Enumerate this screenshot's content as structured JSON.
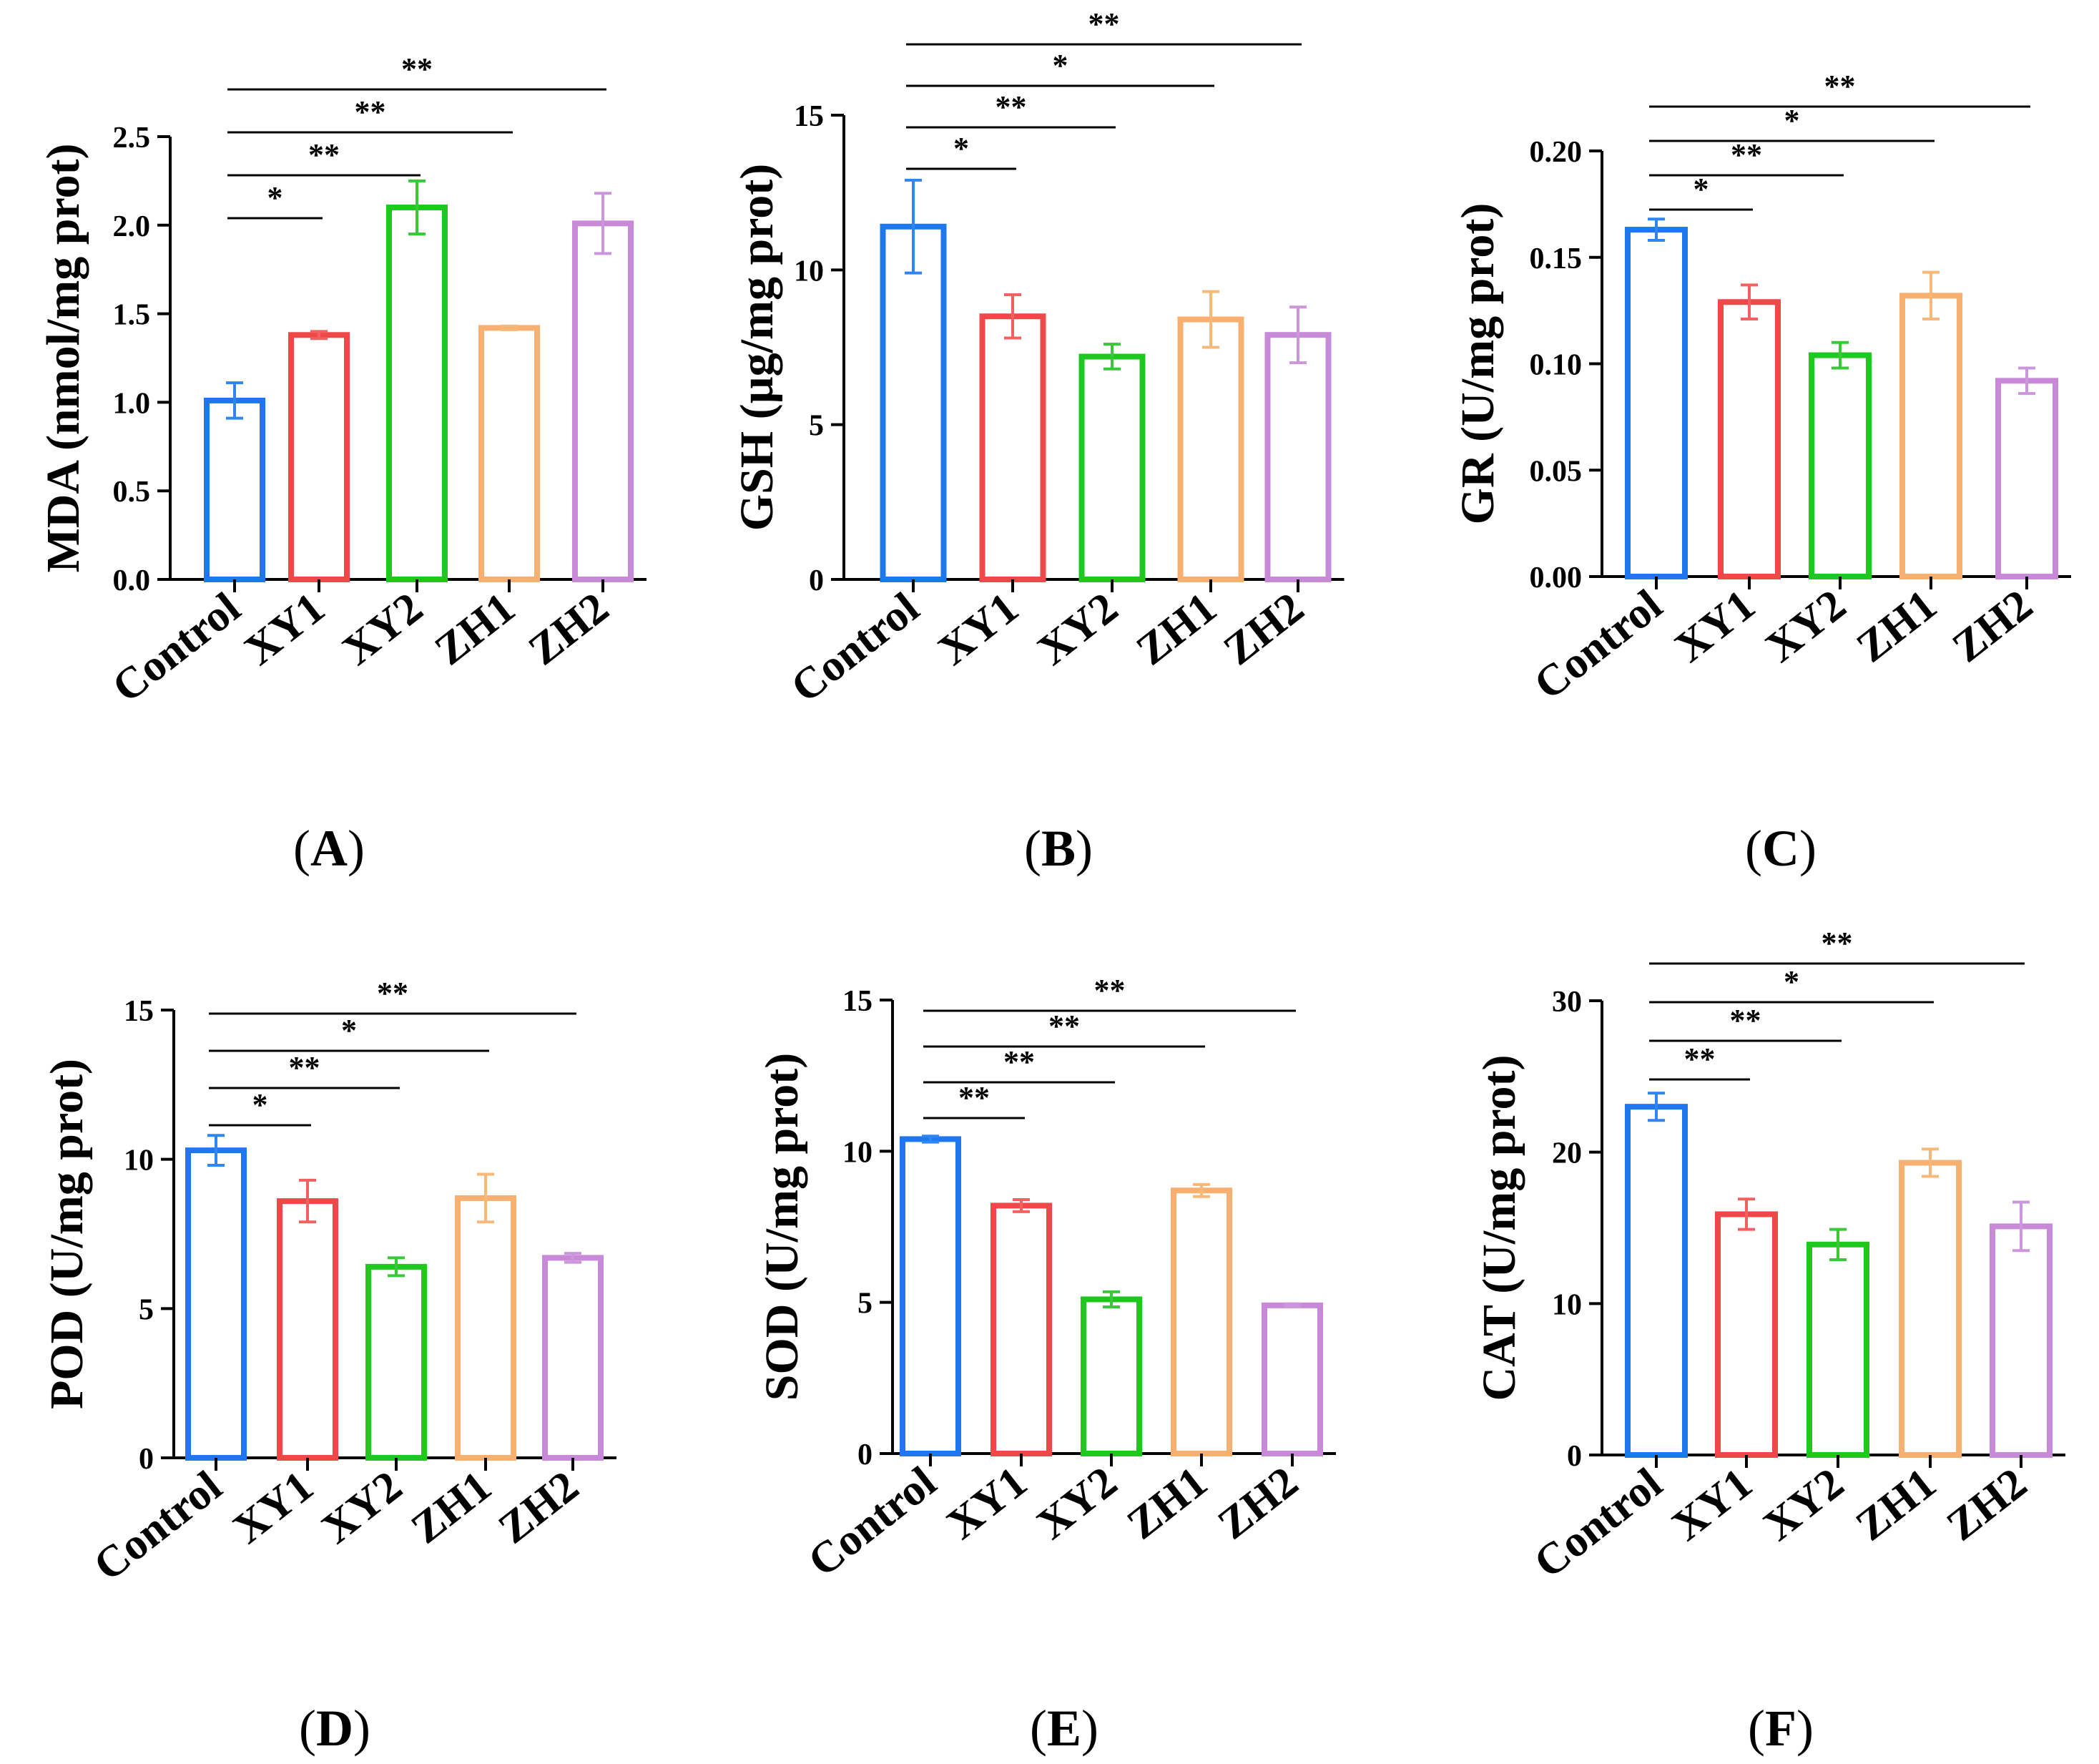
{
  "chart_data": [
    {
      "type": "bar",
      "panel_label": "A",
      "ylabel": "MDA (nmol/mg prot)",
      "categories": [
        "Control",
        "XY1",
        "XY2",
        "ZH1",
        "ZH2"
      ],
      "values": [
        1.01,
        1.38,
        2.1,
        1.42,
        2.01
      ],
      "errors": [
        0.1,
        0.02,
        0.15,
        0.01,
        0.17
      ],
      "ylim": [
        0,
        2.5
      ],
      "yticks": [
        "0.0",
        "0.5",
        "1.0",
        "1.5",
        "2.0",
        "2.5"
      ],
      "significance": [
        {
          "to": "XY1",
          "label": "*"
        },
        {
          "to": "XY2",
          "label": "**"
        },
        {
          "to": "ZH1",
          "label": "**"
        },
        {
          "to": "ZH2",
          "label": "**"
        }
      ]
    },
    {
      "type": "bar",
      "panel_label": "B",
      "ylabel": "GSH (µg/mg prot)",
      "categories": [
        "Control",
        "XY1",
        "XY2",
        "ZH1",
        "ZH2"
      ],
      "values": [
        11.4,
        8.5,
        7.2,
        8.4,
        7.9
      ],
      "errors": [
        1.5,
        0.7,
        0.4,
        0.9,
        0.9
      ],
      "ylim": [
        0,
        15
      ],
      "yticks": [
        "0",
        "5",
        "10",
        "15"
      ],
      "significance": [
        {
          "to": "XY1",
          "label": "*"
        },
        {
          "to": "XY2",
          "label": "**"
        },
        {
          "to": "ZH1",
          "label": "*"
        },
        {
          "to": "ZH2",
          "label": "**"
        }
      ]
    },
    {
      "type": "bar",
      "panel_label": "C",
      "ylabel": "GR (U/mg prot)",
      "categories": [
        "Control",
        "XY1",
        "XY2",
        "ZH1",
        "ZH2"
      ],
      "values": [
        0.163,
        0.129,
        0.104,
        0.132,
        0.092
      ],
      "errors": [
        0.005,
        0.008,
        0.006,
        0.011,
        0.006
      ],
      "ylim": [
        0,
        0.2
      ],
      "yticks": [
        "0.00",
        "0.05",
        "0.10",
        "0.15",
        "0.20"
      ],
      "significance": [
        {
          "to": "XY1",
          "label": "*"
        },
        {
          "to": "XY2",
          "label": "**"
        },
        {
          "to": "ZH1",
          "label": "*"
        },
        {
          "to": "ZH2",
          "label": "**"
        }
      ]
    },
    {
      "type": "bar",
      "panel_label": "D",
      "ylabel": "POD (U/mg prot)",
      "categories": [
        "Control",
        "XY1",
        "XY2",
        "ZH1",
        "ZH2"
      ],
      "values": [
        10.3,
        8.6,
        6.4,
        8.7,
        6.7
      ],
      "errors": [
        0.5,
        0.7,
        0.3,
        0.8,
        0.15
      ],
      "ylim": [
        0,
        15
      ],
      "yticks": [
        "0",
        "5",
        "10",
        "15"
      ],
      "significance": [
        {
          "to": "XY1",
          "label": "*"
        },
        {
          "to": "XY2",
          "label": "**"
        },
        {
          "to": "ZH1",
          "label": "*"
        },
        {
          "to": "ZH2",
          "label": "**"
        }
      ]
    },
    {
      "type": "bar",
      "panel_label": "E",
      "ylabel": "SOD (U/mg prot)",
      "categories": [
        "Control",
        "XY1",
        "XY2",
        "ZH1",
        "ZH2"
      ],
      "values": [
        10.4,
        8.2,
        5.1,
        8.7,
        4.9
      ],
      "errors": [
        0.1,
        0.2,
        0.25,
        0.2,
        0.05
      ],
      "ylim": [
        0,
        15
      ],
      "yticks": [
        "0",
        "5",
        "10",
        "15"
      ],
      "significance": [
        {
          "to": "XY1",
          "label": "**"
        },
        {
          "to": "XY2",
          "label": "**"
        },
        {
          "to": "ZH1",
          "label": "**"
        },
        {
          "to": "ZH2",
          "label": "**"
        }
      ]
    },
    {
      "type": "bar",
      "panel_label": "F",
      "ylabel": "CAT (U/mg prot)",
      "categories": [
        "Control",
        "XY1",
        "XY2",
        "ZH1",
        "ZH2"
      ],
      "values": [
        23.0,
        15.9,
        13.9,
        19.3,
        15.1
      ],
      "errors": [
        0.9,
        1.0,
        1.0,
        0.9,
        1.6
      ],
      "ylim": [
        0,
        30
      ],
      "yticks": [
        "0",
        "10",
        "20",
        "30"
      ],
      "significance": [
        {
          "to": "XY1",
          "label": "**"
        },
        {
          "to": "XY2",
          "label": "**"
        },
        {
          "to": "ZH1",
          "label": "*"
        },
        {
          "to": "ZH2",
          "label": "**"
        }
      ]
    }
  ],
  "colors": {
    "Control": "#1f77f0",
    "XY1": "#f04848",
    "XY2": "#1ec81e",
    "ZH1": "#f8b070",
    "ZH2": "#c88ad8"
  },
  "errorbar_colors": {
    "Control": "#2f86f2",
    "XY1": "#f26060",
    "XY2": "#38c838",
    "ZH1": "#f8b878",
    "ZH2": "#cc96dc"
  }
}
